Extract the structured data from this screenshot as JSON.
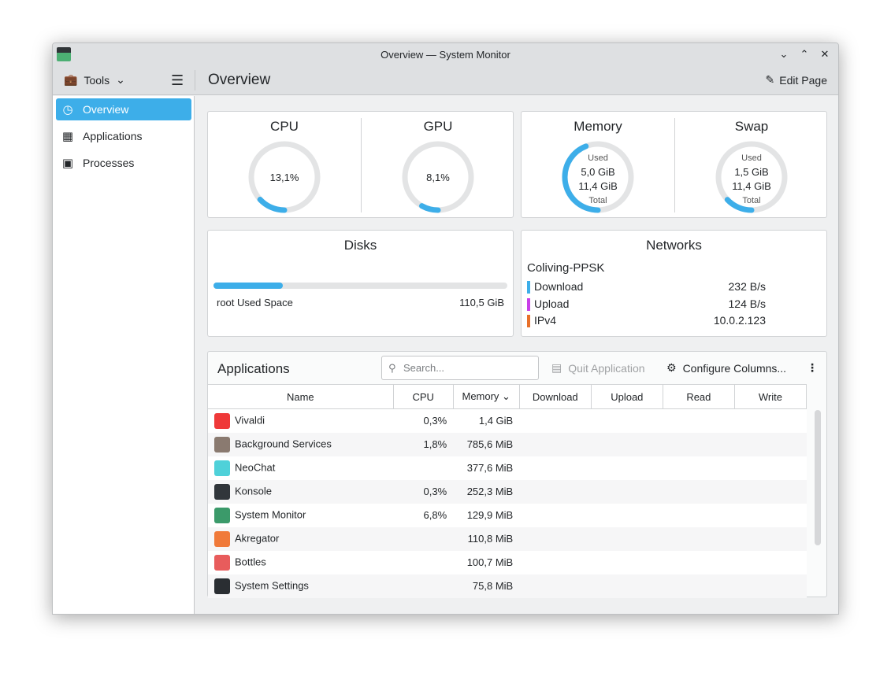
{
  "window": {
    "title": "Overview — System Monitor"
  },
  "toolbar": {
    "tools": "Tools",
    "page_title": "Overview",
    "edit_page": "Edit Page"
  },
  "sidebar": {
    "items": [
      {
        "label": "Overview"
      },
      {
        "label": "Applications"
      },
      {
        "label": "Processes"
      }
    ]
  },
  "colors": {
    "accent": "#3daee9",
    "track": "#e3e4e5",
    "download": "#3daee9",
    "upload": "#c83ee8",
    "ipv4": "#e8702a"
  },
  "gauges": {
    "cpu": {
      "title": "CPU",
      "value": "13,1%",
      "fraction": 0.131
    },
    "gpu": {
      "title": "GPU",
      "value": "8,1%",
      "fraction": 0.081
    },
    "memory": {
      "title": "Memory",
      "used_label": "Used",
      "used": "5,0 GiB",
      "total": "11,4 GiB",
      "total_label": "Total",
      "fraction": 0.44
    },
    "swap": {
      "title": "Swap",
      "used_label": "Used",
      "used": "1,5 GiB",
      "total": "11,4 GiB",
      "total_label": "Total",
      "fraction": 0.13
    }
  },
  "disks": {
    "title": "Disks",
    "label": "root Used Space",
    "value": "110,5 GiB",
    "fraction": 0.235
  },
  "networks": {
    "title": "Networks",
    "name": "Coliving-PPSK",
    "rows": [
      {
        "label": "Download",
        "value": "232 B/s"
      },
      {
        "label": "Upload",
        "value": "124 B/s"
      },
      {
        "label": "IPv4",
        "value": "10.0.2.123"
      }
    ]
  },
  "applications": {
    "title": "Applications",
    "search_placeholder": "Search...",
    "quit": "Quit Application",
    "configure": "Configure Columns...",
    "columns": [
      "Name",
      "CPU",
      "Memory",
      "Download",
      "Upload",
      "Read",
      "Write"
    ],
    "rows": [
      {
        "name": "Vivaldi",
        "cpu": "0,3%",
        "memory": "1,4 GiB",
        "icon": "#ef3939"
      },
      {
        "name": "Background Services",
        "cpu": "1,8%",
        "memory": "785,6 MiB",
        "icon": "#8a7a70"
      },
      {
        "name": "NeoChat",
        "cpu": "",
        "memory": "377,6 MiB",
        "icon": "#4fd1d9"
      },
      {
        "name": "Konsole",
        "cpu": "0,3%",
        "memory": "252,3 MiB",
        "icon": "#31363b"
      },
      {
        "name": "System Monitor",
        "cpu": "6,8%",
        "memory": "129,9 MiB",
        "icon": "#3b9a6a"
      },
      {
        "name": "Akregator",
        "cpu": "",
        "memory": "110,8 MiB",
        "icon": "#f07a3a"
      },
      {
        "name": "Bottles",
        "cpu": "",
        "memory": "100,7 MiB",
        "icon": "#e85c5c"
      },
      {
        "name": "System Settings",
        "cpu": "",
        "memory": "75,8 MiB",
        "icon": "#2a2e32"
      }
    ]
  }
}
